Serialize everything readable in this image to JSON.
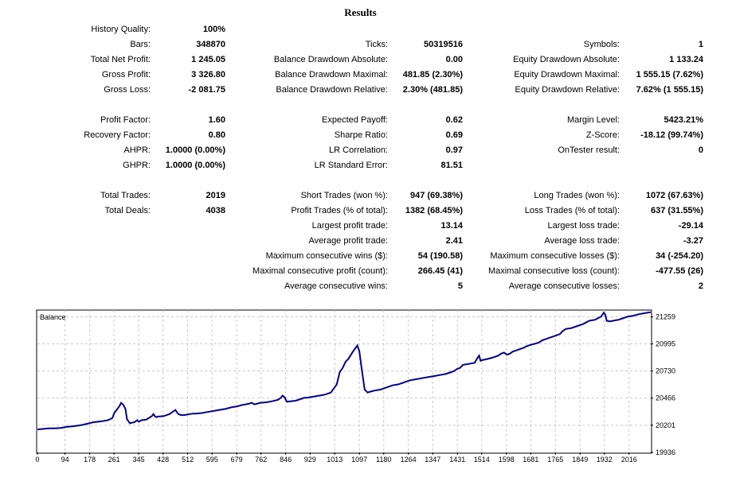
{
  "title": "Results",
  "col1": [
    {
      "label": "History Quality:",
      "value": "100%"
    },
    {
      "label": "Bars:",
      "value": "348870"
    },
    {
      "label": "Total Net Profit:",
      "value": "1 245.05"
    },
    {
      "label": "Gross Profit:",
      "value": "3 326.80"
    },
    {
      "label": "Gross Loss:",
      "value": "-2 081.75"
    },
    {
      "label": "Profit Factor:",
      "value": "1.60"
    },
    {
      "label": "Recovery Factor:",
      "value": "0.80"
    },
    {
      "label": "AHPR:",
      "value": "1.0000 (0.00%)"
    },
    {
      "label": "GHPR:",
      "value": "1.0000 (0.00%)"
    },
    {
      "label": "Total Trades:",
      "value": "2019"
    },
    {
      "label": "Total Deals:",
      "value": "4038"
    }
  ],
  "col2": [
    {
      "label": "Ticks:",
      "value": "50319516"
    },
    {
      "label": "Balance Drawdown Absolute:",
      "value": "0.00"
    },
    {
      "label": "Balance Drawdown Maximal:",
      "value": "481.85 (2.30%)"
    },
    {
      "label": "Balance Drawdown Relative:",
      "value": "2.30% (481.85)"
    },
    {
      "label": "Expected Payoff:",
      "value": "0.62"
    },
    {
      "label": "Sharpe Ratio:",
      "value": "0.69"
    },
    {
      "label": "LR Correlation:",
      "value": "0.97"
    },
    {
      "label": "LR Standard Error:",
      "value": "81.51"
    },
    {
      "label": "Short Trades (won %):",
      "value": "947 (69.38%)"
    },
    {
      "label": "Profit Trades (% of total):",
      "value": "1382 (68.45%)"
    },
    {
      "label": "Largest profit trade:",
      "value": "13.14"
    },
    {
      "label": "Average profit trade:",
      "value": "2.41"
    },
    {
      "label": "Maximum consecutive wins ($):",
      "value": "54 (190.58)"
    },
    {
      "label": "Maximal consecutive profit (count):",
      "value": "266.45 (41)"
    },
    {
      "label": "Average consecutive wins:",
      "value": "5"
    }
  ],
  "col3": [
    {
      "label": "Symbols:",
      "value": "1"
    },
    {
      "label": "Equity Drawdown Absolute:",
      "value": "1 133.24"
    },
    {
      "label": "Equity Drawdown Maximal:",
      "value": "1 555.15 (7.62%)"
    },
    {
      "label": "Equity Drawdown Relative:",
      "value": "7.62% (1 555.15)"
    },
    {
      "label": "Margin Level:",
      "value": "5423.21%"
    },
    {
      "label": "Z-Score:",
      "value": "-18.12 (99.74%)"
    },
    {
      "label": "OnTester result:",
      "value": "0"
    },
    {
      "label": "Long Trades (won %):",
      "value": "1072 (67.63%)"
    },
    {
      "label": "Loss Trades (% of total):",
      "value": "637 (31.55%)"
    },
    {
      "label": "Largest loss trade:",
      "value": "-29.14"
    },
    {
      "label": "Average loss trade:",
      "value": "-3.27"
    },
    {
      "label": "Maximum consecutive losses ($):",
      "value": "34 (-254.20)"
    },
    {
      "label": "Maximal consecutive loss (count):",
      "value": "-477.55 (26)"
    },
    {
      "label": "Average consecutive losses:",
      "value": "2"
    }
  ],
  "chart_data": {
    "type": "line",
    "title": "Balance",
    "xlabel": "",
    "ylabel": "",
    "x_ticks": [
      0,
      94,
      178,
      261,
      345,
      428,
      512,
      595,
      679,
      762,
      846,
      929,
      1013,
      1097,
      1180,
      1264,
      1347,
      1431,
      1514,
      1598,
      1681,
      1765,
      1849,
      1932,
      2016
    ],
    "y_ticks": [
      19936,
      20201,
      20466,
      20730,
      20995,
      21259
    ],
    "xlim": [
      0,
      2090
    ],
    "ylim": [
      19936,
      21325
    ],
    "grid": true,
    "line_color": "#00008b",
    "series": [
      {
        "x": [
          0,
          40,
          60,
          80,
          100,
          120,
          145,
          170,
          190,
          220,
          240,
          255,
          262,
          280,
          285,
          293,
          300,
          305,
          310,
          315,
          320,
          330,
          340,
          345,
          355,
          370,
          390,
          395,
          400,
          405,
          410,
          430,
          450,
          460,
          470,
          480,
          490,
          500,
          510,
          520,
          530,
          540,
          560,
          580,
          600,
          620,
          640,
          660,
          680,
          700,
          720,
          730,
          740,
          760,
          780,
          800,
          820,
          830,
          835,
          840,
          843,
          846,
          850,
          880,
          900,
          910,
          920,
          940,
          960,
          980,
          1000,
          1020,
          1030,
          1040,
          1050,
          1060,
          1075,
          1090,
          1097,
          1105,
          1115,
          1125,
          1135,
          1150,
          1170,
          1190,
          1210,
          1230,
          1250,
          1270,
          1290,
          1310,
          1330,
          1350,
          1370,
          1390,
          1410,
          1420,
          1430,
          1440,
          1450,
          1470,
          1490,
          1500,
          1505,
          1510,
          1520,
          1530,
          1550,
          1570,
          1580,
          1590,
          1600,
          1610,
          1620,
          1630,
          1650,
          1660,
          1665,
          1680,
          1700,
          1710,
          1720,
          1740,
          1760,
          1780,
          1790,
          1800,
          1820,
          1840,
          1860,
          1880,
          1900,
          1920,
          1930,
          1935,
          1940,
          1950,
          1970,
          1980,
          1990,
          2000,
          2010,
          2030,
          2050,
          2070,
          2090
        ],
        "y": [
          20160,
          20170,
          20170,
          20175,
          20185,
          20190,
          20200,
          20215,
          20230,
          20240,
          20250,
          20270,
          20320,
          20390,
          20420,
          20400,
          20360,
          20260,
          20240,
          20220,
          20225,
          20230,
          20250,
          20235,
          20250,
          20255,
          20290,
          20310,
          20290,
          20280,
          20285,
          20290,
          20310,
          20330,
          20350,
          20310,
          20300,
          20300,
          20305,
          20310,
          20315,
          20315,
          20320,
          20330,
          20340,
          20350,
          20360,
          20375,
          20385,
          20400,
          20410,
          20420,
          20405,
          20420,
          20425,
          20435,
          20450,
          20470,
          20490,
          20480,
          20470,
          20450,
          20430,
          20440,
          20460,
          20470,
          20470,
          20480,
          20490,
          20500,
          20520,
          20600,
          20720,
          20760,
          20820,
          20850,
          20920,
          20980,
          20920,
          20750,
          20550,
          20520,
          20530,
          20540,
          20550,
          20570,
          20590,
          20600,
          20620,
          20640,
          20650,
          20660,
          20670,
          20680,
          20690,
          20700,
          20720,
          20730,
          20750,
          20760,
          20790,
          20800,
          20810,
          20860,
          20880,
          20830,
          20840,
          20845,
          20860,
          20880,
          20900,
          20910,
          20890,
          20900,
          20920,
          20930,
          20950,
          20960,
          20970,
          20985,
          21000,
          21010,
          21030,
          21050,
          21070,
          21090,
          21120,
          21140,
          21150,
          21170,
          21190,
          21220,
          21230,
          21260,
          21300,
          21280,
          21220,
          21215,
          21225,
          21230,
          21240,
          21250,
          21260,
          21270,
          21285,
          21295,
          21305
        ]
      }
    ]
  }
}
